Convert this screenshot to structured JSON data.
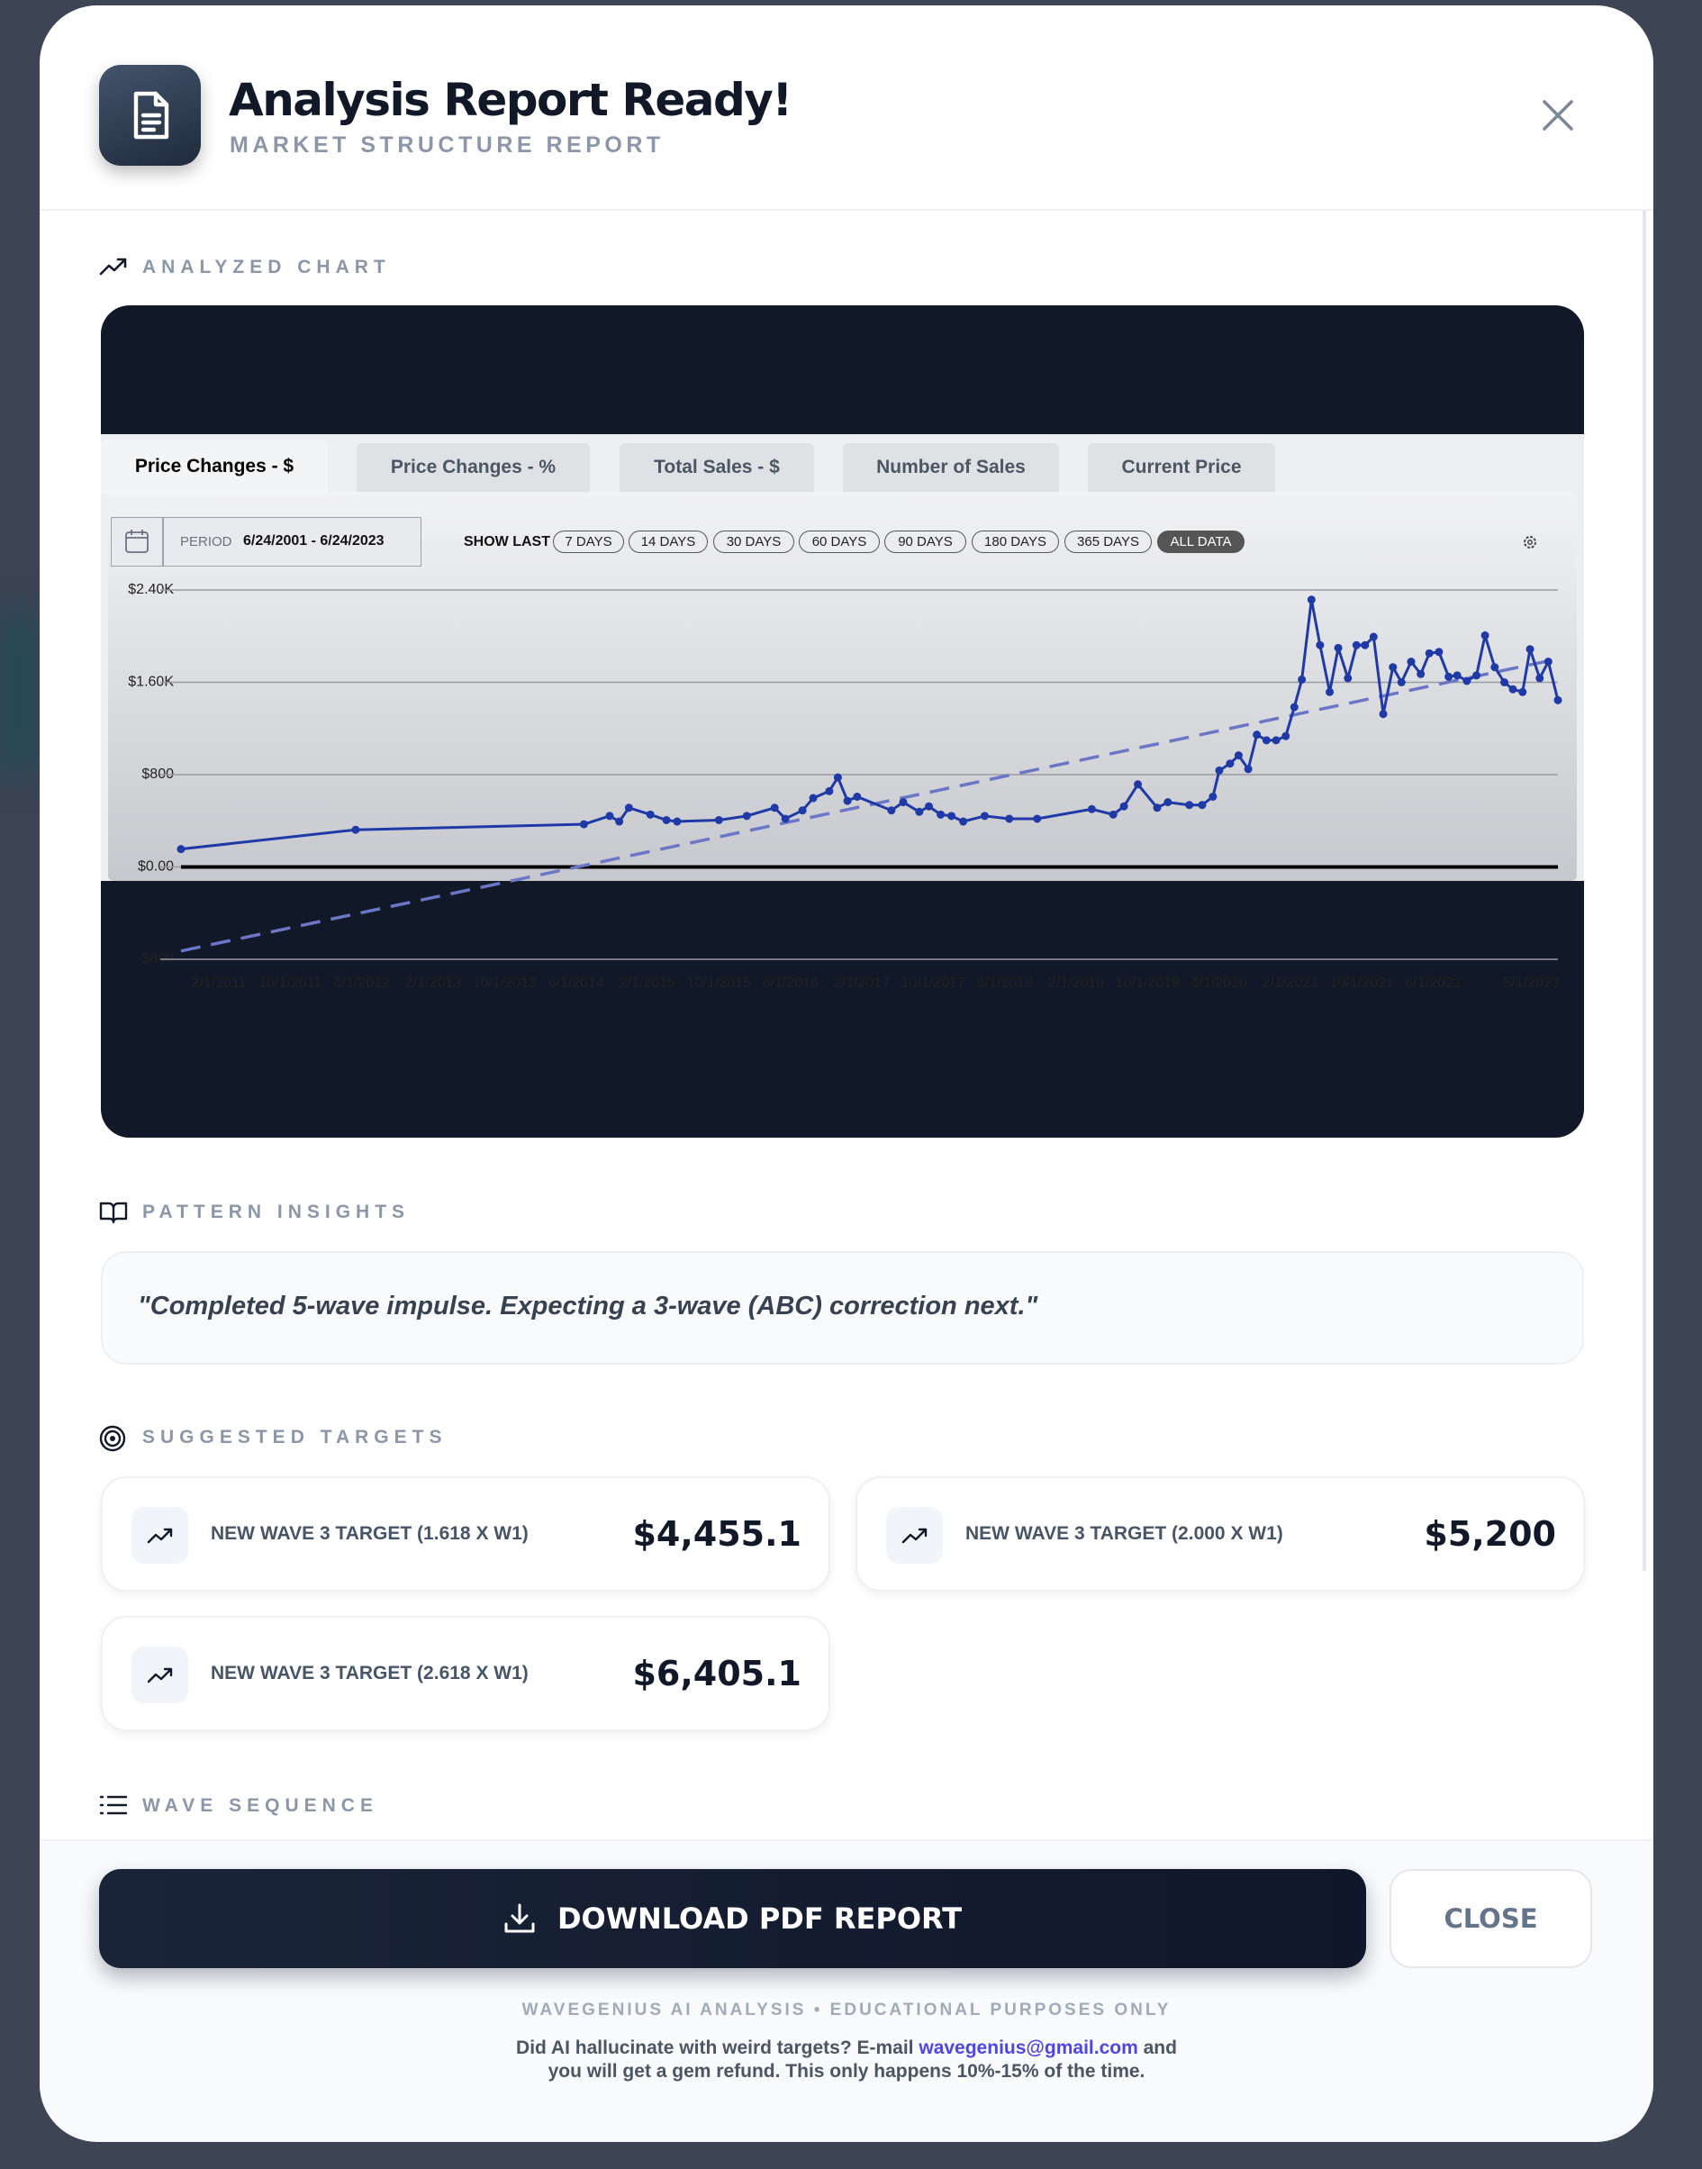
{
  "header": {
    "title": "Analysis Report Ready!",
    "subtitle": "MARKET STRUCTURE REPORT"
  },
  "analyzed_chart": {
    "heading": "ANALYZED CHART",
    "tabs": [
      "Price Changes - $",
      "Price Changes - %",
      "Total Sales - $",
      "Number of Sales",
      "Current Price"
    ],
    "period_label": "PERIOD",
    "period": "6/24/2001 - 6/24/2023",
    "show_last_label": "SHOW LAST",
    "ranges": [
      "7 DAYS",
      "14 DAYS",
      "30 DAYS",
      "60 DAYS",
      "90 DAYS",
      "180 DAYS",
      "365 DAYS",
      "ALL DATA"
    ],
    "chart": {
      "type": "line",
      "xlim": [
        2010.73,
        2023.58
      ],
      "xticks": [
        {
          "value": 2011.083,
          "label": "2/1/2011"
        },
        {
          "value": 2011.75,
          "label": "10/1/2011"
        },
        {
          "value": 2012.417,
          "label": "6/1/2012"
        },
        {
          "value": 2013.083,
          "label": "2/1/2013"
        },
        {
          "value": 2013.75,
          "label": "10/1/2013"
        },
        {
          "value": 2014.417,
          "label": "6/1/2014"
        },
        {
          "value": 2015.083,
          "label": "2/1/2015"
        },
        {
          "value": 2015.75,
          "label": "10/1/2015"
        },
        {
          "value": 2016.417,
          "label": "6/1/2016"
        },
        {
          "value": 2017.083,
          "label": "2/1/2017"
        },
        {
          "value": 2017.75,
          "label": "10/1/2017"
        },
        {
          "value": 2018.417,
          "label": "6/1/2018"
        },
        {
          "value": 2019.083,
          "label": "2/1/2019"
        },
        {
          "value": 2019.75,
          "label": "10/1/2019"
        },
        {
          "value": 2020.417,
          "label": "6/1/2020"
        },
        {
          "value": 2021.083,
          "label": "2/1/2021"
        },
        {
          "value": 2021.75,
          "label": "10/1/2021"
        },
        {
          "value": 2022.417,
          "label": "6/1/2022"
        },
        {
          "value": 2023.333,
          "label": "5/1/2023"
        }
      ],
      "ylim": [
        -800,
        2400
      ],
      "yticks": [
        {
          "value": 2400,
          "label": "$2.40K"
        },
        {
          "value": 1600,
          "label": "$1.60K"
        },
        {
          "value": 800,
          "label": "$800"
        },
        {
          "value": 0,
          "label": "$0.00"
        },
        {
          "value": -800,
          "label": "-$800"
        }
      ],
      "grid": true,
      "series": [
        {
          "color": "#1f3aa6",
          "x": [
            2010.73,
            2012.36,
            2014.49,
            2014.73,
            2014.82,
            2014.91,
            2015.11,
            2015.26,
            2015.36,
            2015.75,
            2016.01,
            2016.27,
            2016.37,
            2016.53,
            2016.63,
            2016.78,
            2016.86,
            2016.95,
            2017.04,
            2017.36,
            2017.47,
            2017.62,
            2017.71,
            2017.82,
            2017.92,
            2018.03,
            2018.23,
            2018.46,
            2018.72,
            2019.23,
            2019.43,
            2019.53,
            2019.66,
            2019.84,
            2019.94,
            2020.14,
            2020.26,
            2020.36,
            2020.42,
            2020.52,
            2020.6,
            2020.69,
            2020.77,
            2020.86,
            2020.95,
            2021.04,
            2021.12,
            2021.19,
            2021.28,
            2021.36,
            2021.45,
            2021.53,
            2021.62,
            2021.7,
            2021.78,
            2021.86,
            2021.95,
            2022.04,
            2022.12,
            2022.21,
            2022.3,
            2022.38,
            2022.47,
            2022.56,
            2022.64,
            2022.73,
            2022.82,
            2022.9,
            2022.99,
            2023.08,
            2023.16,
            2023.25,
            2023.32,
            2023.41,
            2023.49,
            2023.58
          ],
          "values": [
            155,
            322,
            370,
            442,
            394,
            513,
            454,
            406,
            394,
            406,
            442,
            513,
            418,
            490,
            597,
            657,
            776,
            573,
            609,
            490,
            561,
            478,
            525,
            454,
            442,
            394,
            442,
            418,
            418,
            501,
            454,
            525,
            716,
            513,
            561,
            537,
            537,
            609,
            836,
            896,
            967,
            848,
            1146,
            1098,
            1098,
            1134,
            1385,
            1624,
            2316,
            1922,
            1516,
            1898,
            1636,
            1922,
            1922,
            1994,
            1325,
            1731,
            1600,
            1779,
            1672,
            1851,
            1863,
            1648,
            1660,
            1612,
            1660,
            2006,
            1731,
            1600,
            1540,
            1516,
            1887,
            1636,
            1779,
            1445
          ]
        }
      ],
      "trendline": {
        "color": "#6b76c6",
        "style": "dashed",
        "x": [
          2010.73,
          2023.58
        ],
        "values": [
          -728,
          1803
        ]
      }
    }
  },
  "pattern_insights": {
    "heading": "PATTERN INSIGHTS",
    "quote": "\"Completed 5-wave impulse. Expecting a 3-wave (ABC) correction next.\""
  },
  "suggested_targets": {
    "heading": "SUGGESTED TARGETS",
    "targets": [
      {
        "label": "NEW WAVE 3 TARGET (1.618 X W1)",
        "value": "$4,455.1"
      },
      {
        "label": "NEW WAVE 3 TARGET (2.000 X W1)",
        "value": "$5,200"
      },
      {
        "label": "NEW WAVE 3 TARGET (2.618 X W1)",
        "value": "$6,405.1"
      }
    ]
  },
  "wave_sequence": {
    "heading": "WAVE SEQUENCE"
  },
  "buttons": {
    "download": "DOWNLOAD PDF REPORT",
    "close": "CLOSE"
  },
  "footer": {
    "disclaimer": "WAVEGENIUS AI ANALYSIS • EDUCATIONAL PURPOSES ONLY",
    "note_start": "Did AI hallucinate with weird targets? E-mail",
    "email": "wavegenius@gmail.com",
    "note_end": "and",
    "note_line2": "you will get a gem refund. This only happens 10%-15% of the time."
  }
}
